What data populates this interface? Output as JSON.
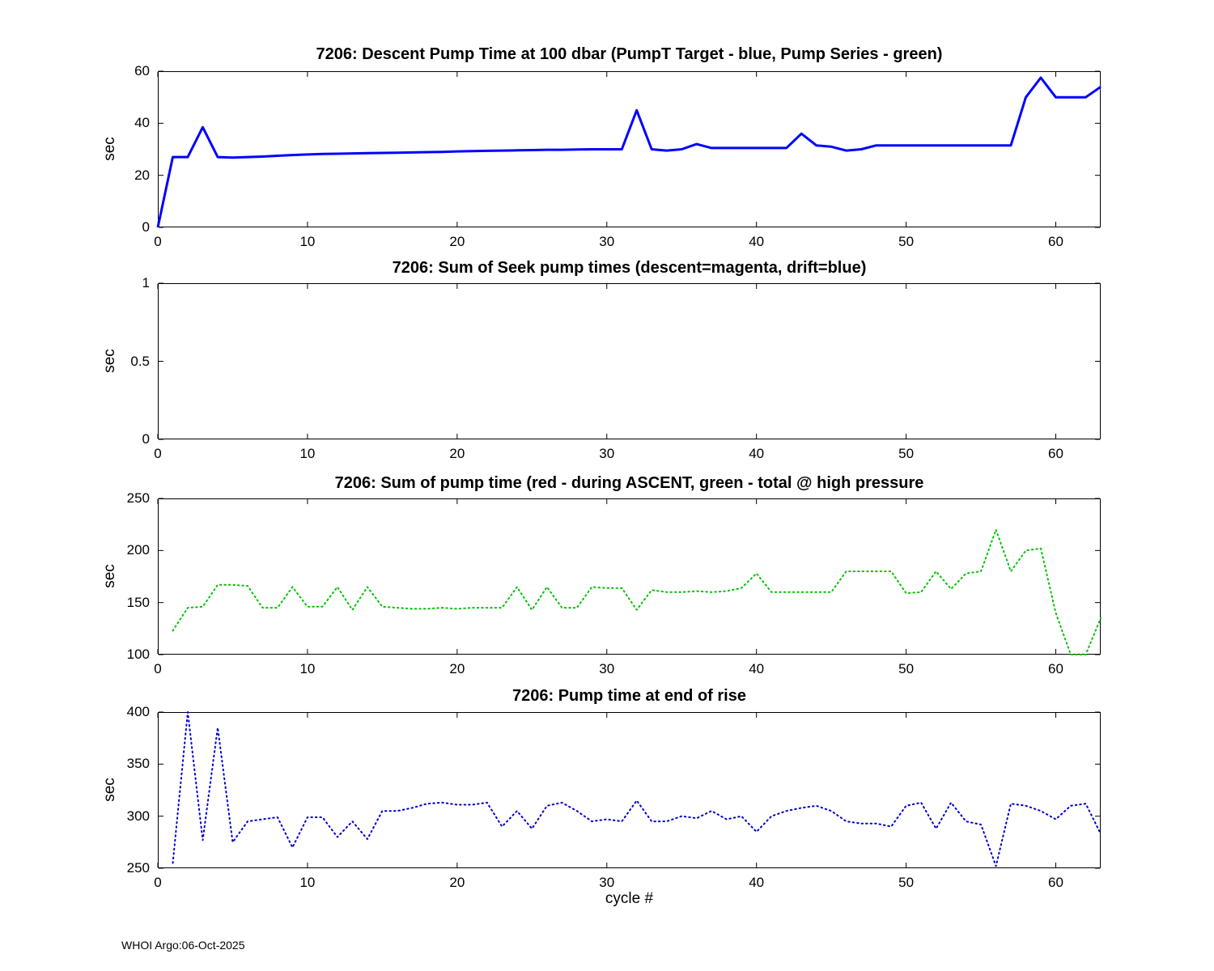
{
  "figure": {
    "xlabel": "cycle #",
    "footer": "WHOI Argo:06-Oct-2025"
  },
  "chart_data": [
    {
      "type": "line",
      "title": "7206: Descent Pump Time at 100 dbar (PumpT Target - blue, Pump Series - green)",
      "ylabel": "sec",
      "xlim": [
        0,
        63
      ],
      "ylim": [
        0,
        60
      ],
      "xticks": [
        0,
        10,
        20,
        30,
        40,
        50,
        60
      ],
      "yticks": [
        0,
        20,
        40,
        60
      ],
      "grid": false,
      "legend": "in-title",
      "series": [
        {
          "name": "PumpT Target",
          "color": "#0000ff",
          "line": "solid",
          "width": 3,
          "x": [
            0,
            1,
            2,
            3,
            4,
            5,
            6,
            7,
            8,
            9,
            10,
            11,
            12,
            13,
            14,
            15,
            16,
            17,
            18,
            19,
            20,
            21,
            22,
            23,
            24,
            25,
            26,
            27,
            28,
            29,
            30,
            31,
            32,
            33,
            34,
            35,
            36,
            37,
            38,
            39,
            40,
            41,
            42,
            43,
            44,
            45,
            46,
            47,
            48,
            49,
            50,
            51,
            52,
            53,
            54,
            55,
            56,
            57,
            58,
            59,
            60,
            61,
            62,
            63
          ],
          "y": [
            0,
            27,
            27,
            38.5,
            27,
            26.8,
            27,
            27.2,
            27.5,
            27.8,
            28,
            28.2,
            28.3,
            28.4,
            28.5,
            28.6,
            28.7,
            28.8,
            28.9,
            29,
            29.2,
            29.3,
            29.4,
            29.5,
            29.6,
            29.7,
            29.8,
            29.8,
            29.9,
            30,
            30,
            30,
            45,
            30,
            29.5,
            30,
            32,
            30.5,
            30.5,
            30.5,
            30.5,
            30.5,
            30.5,
            36,
            31.5,
            31,
            29.5,
            30,
            31.5,
            31.5,
            31.5,
            31.5,
            31.5,
            31.5,
            31.5,
            31.5,
            31.5,
            31.5,
            50,
            57.5,
            50,
            50,
            50,
            54
          ]
        }
      ]
    },
    {
      "type": "line",
      "title": "7206: Sum of Seek pump times (descent=magenta, drift=blue)",
      "ylabel": "sec",
      "xlim": [
        0,
        63
      ],
      "ylim": [
        0,
        1
      ],
      "xticks": [
        0,
        10,
        20,
        30,
        40,
        50,
        60
      ],
      "yticks": [
        0,
        0.5,
        1
      ],
      "grid": false,
      "legend": "in-title",
      "series": []
    },
    {
      "type": "line",
      "title": "7206: Sum of pump time (red - during ASCENT, green - total @ high pressure",
      "ylabel": "sec",
      "xlim": [
        0,
        63
      ],
      "ylim": [
        100,
        250
      ],
      "xticks": [
        0,
        10,
        20,
        30,
        40,
        50,
        60
      ],
      "yticks": [
        100,
        150,
        200,
        250
      ],
      "grid": false,
      "legend": "in-title",
      "series": [
        {
          "name": "total at high pressure",
          "color": "#00c300",
          "line": "dotted",
          "width": 2,
          "x": [
            1,
            2,
            3,
            4,
            5,
            6,
            7,
            8,
            9,
            10,
            11,
            12,
            13,
            14,
            15,
            16,
            17,
            18,
            19,
            20,
            21,
            22,
            23,
            24,
            25,
            26,
            27,
            28,
            29,
            30,
            31,
            32,
            33,
            34,
            35,
            36,
            37,
            38,
            39,
            40,
            41,
            42,
            43,
            44,
            45,
            46,
            47,
            48,
            49,
            50,
            51,
            52,
            53,
            54,
            55,
            56,
            57,
            58,
            59,
            60,
            61,
            62,
            63
          ],
          "y": [
            123,
            145,
            146,
            167,
            167,
            166,
            145,
            145,
            165,
            146,
            146,
            165,
            143,
            165,
            146,
            145,
            144,
            144,
            145,
            144,
            145,
            145,
            145,
            165,
            143,
            165,
            145,
            145,
            165,
            164,
            164,
            143,
            162,
            160,
            160,
            161,
            160,
            161,
            164,
            178,
            160,
            160,
            160,
            160,
            160,
            180,
            180,
            180,
            180,
            159,
            160,
            180,
            163,
            178,
            180,
            220,
            180,
            200,
            202,
            140,
            99,
            98,
            135
          ]
        }
      ]
    },
    {
      "type": "line",
      "title": "7206: Pump time at end of rise",
      "ylabel": "sec",
      "xlim": [
        0,
        63
      ],
      "ylim": [
        250,
        400
      ],
      "xticks": [
        0,
        10,
        20,
        30,
        40,
        50,
        60
      ],
      "yticks": [
        250,
        300,
        350,
        400
      ],
      "grid": false,
      "legend": "none",
      "series": [
        {
          "name": "pump time at end of rise",
          "color": "#0000cc",
          "line": "dotted",
          "width": 2,
          "x": [
            1,
            2,
            3,
            4,
            5,
            6,
            7,
            8,
            9,
            10,
            11,
            12,
            13,
            14,
            15,
            16,
            17,
            18,
            19,
            20,
            21,
            22,
            23,
            24,
            25,
            26,
            27,
            28,
            29,
            30,
            31,
            32,
            33,
            34,
            35,
            36,
            37,
            38,
            39,
            40,
            41,
            42,
            43,
            44,
            45,
            46,
            47,
            48,
            49,
            50,
            51,
            52,
            53,
            54,
            55,
            56,
            57,
            58,
            59,
            60,
            61,
            62,
            63
          ],
          "y": [
            255,
            400,
            277,
            385,
            275,
            295,
            297,
            299,
            270,
            299,
            299,
            280,
            295,
            278,
            305,
            305,
            308,
            312,
            313,
            311,
            311,
            313,
            290,
            305,
            288,
            310,
            313,
            305,
            295,
            297,
            295,
            315,
            295,
            295,
            300,
            298,
            305,
            297,
            300,
            285,
            300,
            305,
            308,
            310,
            305,
            295,
            293,
            293,
            290,
            310,
            313,
            288,
            313,
            295,
            292,
            252,
            312,
            310,
            305,
            297,
            310,
            312,
            283
          ]
        }
      ]
    }
  ]
}
